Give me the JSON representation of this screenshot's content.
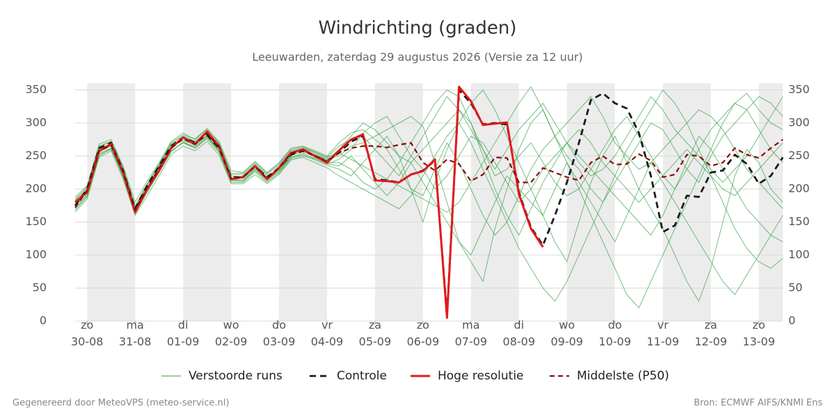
{
  "chart_data": {
    "type": "line",
    "title": "Windrichting (graden)",
    "subtitle": "Leeuwarden, zaterdag 29 augustus 2026 (Versie za 12 uur)",
    "footer_left": "Gegenereerd door MeteoVPS (meteo-service.nl)",
    "footer_right": "Bron: ECMWF AIFS/KNMI Ens",
    "xlim": [
      -0.25,
      14.5
    ],
    "ylim": [
      0,
      360
    ],
    "yticks": [
      0,
      50,
      100,
      150,
      200,
      250,
      300,
      350
    ],
    "y2lim": [
      0,
      360
    ],
    "y2ticks": [
      0,
      50,
      100,
      150,
      200,
      250,
      300,
      350
    ],
    "grid": true,
    "legend": "bottom",
    "xticks": [
      {
        "value": 0,
        "label": "zo\n30-08"
      },
      {
        "value": 1,
        "label": "ma\n31-08"
      },
      {
        "value": 2,
        "label": "di\n01-09"
      },
      {
        "value": 3,
        "label": "wo\n02-09"
      },
      {
        "value": 4,
        "label": "do\n03-09"
      },
      {
        "value": 5,
        "label": "vr\n04-09"
      },
      {
        "value": 6,
        "label": "za\n05-09"
      },
      {
        "value": 7,
        "label": "zo\n06-09"
      },
      {
        "value": 8,
        "label": "ma\n07-09"
      },
      {
        "value": 9,
        "label": "di\n08-09"
      },
      {
        "value": 10,
        "label": "wo\n09-09"
      },
      {
        "value": 11,
        "label": "do\n10-09"
      },
      {
        "value": 12,
        "label": "vr\n11-09"
      },
      {
        "value": 13,
        "label": "za\n12-09"
      },
      {
        "value": 14,
        "label": "zo\n13-09"
      }
    ],
    "x": [
      -0.25,
      0,
      0.25,
      0.5,
      0.75,
      1,
      1.25,
      1.5,
      1.75,
      2,
      2.25,
      2.5,
      2.75,
      3,
      3.25,
      3.5,
      3.75,
      4,
      4.25,
      4.5,
      4.75,
      5,
      5.25,
      5.5,
      5.75,
      6,
      6.25,
      6.5,
      6.75,
      7,
      7.25,
      7.5,
      7.75,
      8,
      8.25,
      8.5,
      8.75,
      9,
      9.25,
      9.5,
      9.75,
      10,
      10.25,
      10.5,
      10.75,
      11,
      11.25,
      11.5,
      11.75,
      12,
      12.25,
      12.5,
      12.75,
      13,
      13.25,
      13.5,
      13.75,
      14,
      14.25,
      14.5
    ],
    "ensemble": {
      "name": "Verstoorde runs",
      "color": "#2e9e3e",
      "members": [
        [
          183,
          203,
          265,
          272,
          230,
          172,
          207,
          236,
          268,
          280,
          272,
          288,
          268,
          222,
          222,
          238,
          222,
          236,
          258,
          262,
          254,
          246,
          250,
          265,
          270,
          280,
          290,
          300,
          310,
          295,
          240,
          180,
          120,
          90,
          60,
          140,
          200,
          260,
          300,
          320,
          280,
          250,
          230,
          200,
          180,
          210,
          240,
          270,
          300,
          290,
          260,
          230,
          210,
          250,
          280,
          300,
          320,
          340,
          330,
          310
        ],
        [
          172,
          192,
          254,
          262,
          220,
          162,
          196,
          226,
          258,
          270,
          262,
          278,
          258,
          212,
          212,
          228,
          212,
          226,
          248,
          252,
          244,
          236,
          230,
          220,
          240,
          260,
          280,
          250,
          200,
          150,
          210,
          260,
          300,
          330,
          350,
          320,
          280,
          240,
          200,
          160,
          120,
          90,
          150,
          210,
          250,
          280,
          240,
          200,
          170,
          140,
          100,
          60,
          30,
          80,
          150,
          220,
          260,
          240,
          200,
          180
        ],
        [
          188,
          205,
          268,
          275,
          235,
          180,
          212,
          240,
          272,
          285,
          275,
          290,
          272,
          228,
          225,
          242,
          225,
          240,
          262,
          265,
          258,
          250,
          270,
          285,
          290,
          275,
          260,
          230,
          200,
          190,
          230,
          270,
          240,
          200,
          160,
          130,
          150,
          190,
          230,
          260,
          280,
          300,
          320,
          340,
          310,
          270,
          250,
          230,
          240,
          260,
          280,
          300,
          320,
          310,
          290,
          260,
          230,
          210,
          190,
          170
        ],
        [
          165,
          185,
          248,
          258,
          215,
          160,
          190,
          220,
          252,
          265,
          258,
          272,
          252,
          208,
          208,
          222,
          208,
          222,
          244,
          248,
          240,
          232,
          220,
          210,
          200,
          190,
          180,
          170,
          190,
          220,
          250,
          280,
          300,
          270,
          230,
          190,
          150,
          110,
          80,
          50,
          30,
          60,
          100,
          140,
          180,
          220,
          260,
          290,
          320,
          350,
          330,
          300,
          260,
          220,
          180,
          140,
          110,
          90,
          80,
          95
        ],
        [
          180,
          200,
          258,
          270,
          228,
          170,
          205,
          230,
          262,
          278,
          270,
          285,
          266,
          216,
          220,
          236,
          220,
          230,
          252,
          256,
          252,
          245,
          260,
          280,
          300,
          290,
          270,
          250,
          240,
          260,
          280,
          300,
          320,
          300,
          260,
          220,
          230,
          250,
          270,
          240,
          210,
          190,
          200,
          230,
          260,
          290,
          310,
          280,
          250,
          220,
          200,
          230,
          260,
          290,
          310,
          330,
          345,
          320,
          300,
          290
        ],
        [
          175,
          195,
          262,
          265,
          222,
          166,
          200,
          234,
          266,
          274,
          266,
          282,
          262,
          220,
          216,
          232,
          216,
          234,
          256,
          260,
          248,
          240,
          240,
          230,
          210,
          200,
          215,
          240,
          270,
          300,
          330,
          350,
          340,
          300,
          250,
          200,
          160,
          130,
          170,
          210,
          240,
          270,
          250,
          230,
          210,
          190,
          170,
          150,
          130,
          160,
          200,
          240,
          280,
          260,
          230,
          200,
          170,
          150,
          130,
          120
        ],
        [
          182,
          198,
          256,
          266,
          230,
          168,
          198,
          228,
          260,
          280,
          272,
          280,
          260,
          214,
          214,
          230,
          214,
          228,
          250,
          262,
          256,
          248,
          255,
          245,
          235,
          225,
          215,
          205,
          195,
          185,
          175,
          165,
          180,
          210,
          240,
          270,
          300,
          330,
          355,
          320,
          280,
          240,
          200,
          160,
          120,
          80,
          40,
          20,
          60,
          100,
          140,
          180,
          220,
          260,
          300,
          330,
          320,
          290,
          260,
          240
        ],
        [
          170,
          190,
          250,
          262,
          218,
          164,
          195,
          225,
          256,
          272,
          262,
          276,
          256,
          210,
          210,
          226,
          210,
          224,
          246,
          250,
          246,
          238,
          245,
          260,
          285,
          300,
          310,
          280,
          250,
          230,
          200,
          220,
          250,
          280,
          270,
          240,
          210,
          180,
          200,
          230,
          250,
          270,
          290,
          270,
          240,
          220,
          200,
          180,
          200,
          220,
          240,
          260,
          240,
          220,
          200,
          190,
          210,
          230,
          250,
          270
        ],
        [
          185,
          202,
          264,
          272,
          232,
          174,
          208,
          238,
          270,
          282,
          276,
          292,
          270,
          224,
          224,
          240,
          224,
          238,
          260,
          264,
          256,
          248,
          265,
          275,
          280,
          260,
          240,
          220,
          250,
          280,
          310,
          340,
          320,
          290,
          260,
          230,
          260,
          290,
          310,
          330,
          300,
          270,
          240,
          220,
          230,
          250,
          280,
          310,
          340,
          320,
          290,
          270,
          250,
          230,
          210,
          230,
          250,
          280,
          310,
          340
        ],
        [
          168,
          188,
          252,
          260,
          224,
          172,
          200,
          226,
          258,
          270,
          264,
          280,
          258,
          214,
          212,
          230,
          214,
          228,
          248,
          254,
          246,
          238,
          235,
          250,
          230,
          210,
          190,
          210,
          240,
          210,
          180,
          150,
          120,
          100,
          140,
          180,
          220,
          200,
          180,
          160,
          200,
          240,
          210,
          180,
          150,
          120,
          160,
          200,
          240,
          210,
          180,
          150,
          120,
          90,
          60,
          40,
          70,
          100,
          130,
          160
        ]
      ]
    },
    "series": [
      {
        "name": "Controle",
        "color": "#1a1a1a",
        "dash": "9,6",
        "width": 2.8,
        "values": [
          175,
          200,
          262,
          270,
          228,
          170,
          205,
          235,
          265,
          278,
          270,
          282,
          262,
          218,
          218,
          235,
          218,
          232,
          252,
          258,
          250,
          242,
          255,
          272,
          280,
          215,
          213,
          210,
          222,
          228,
          243,
          10,
          350,
          330,
          298,
          300,
          298,
          195,
          142,
          115,
          160,
          210,
          270,
          335,
          345,
          330,
          322,
          285,
          220,
          135,
          145,
          190,
          188,
          225,
          228,
          252,
          238,
          208,
          220,
          248
        ]
      },
      {
        "name": "Hoge resolutie",
        "color": "#e3191b",
        "dash": "",
        "width": 3,
        "values": [
          180,
          195,
          258,
          268,
          225,
          165,
          200,
          228,
          262,
          278,
          268,
          287,
          265,
          215,
          218,
          235,
          215,
          232,
          255,
          260,
          250,
          240,
          258,
          275,
          283,
          213,
          212,
          210,
          222,
          227,
          245,
          5,
          355,
          333,
          297,
          299,
          301,
          192,
          140,
          112,
          null,
          null,
          null,
          null,
          null,
          null,
          null,
          null,
          null,
          null,
          null,
          null,
          null,
          null,
          null,
          null,
          null,
          null,
          null,
          null
        ]
      },
      {
        "name": "Middelste (P50)",
        "color": "#8b0a0a",
        "dash": "7,5",
        "width": 2.2,
        "values": [
          172,
          198,
          258,
          266,
          226,
          168,
          202,
          232,
          262,
          276,
          268,
          284,
          264,
          216,
          218,
          234,
          216,
          232,
          254,
          258,
          250,
          242,
          255,
          262,
          265,
          265,
          263,
          267,
          270,
          240,
          228,
          245,
          238,
          212,
          222,
          248,
          247,
          210,
          210,
          232,
          225,
          218,
          213,
          240,
          250,
          237,
          238,
          253,
          243,
          218,
          222,
          252,
          250,
          235,
          240,
          262,
          252,
          247,
          262,
          275
        ]
      }
    ]
  }
}
